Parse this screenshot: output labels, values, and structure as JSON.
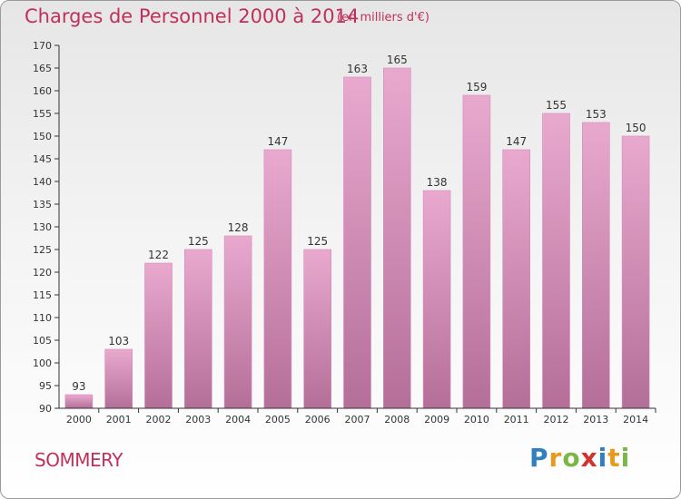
{
  "title": "Charges de Personnel 2000 à 2014",
  "unit_note": "(en milliers d'€)",
  "town": "SOMMERY",
  "logo": {
    "text": "Proxiti",
    "letters": [
      {
        "ch": "P",
        "color": "#2f7fc1"
      },
      {
        "ch": "r",
        "color": "#e89a1e"
      },
      {
        "ch": "o",
        "color": "#7ab648"
      },
      {
        "ch": "x",
        "color": "#d0342c"
      },
      {
        "ch": "i",
        "color": "#2f7fc1"
      },
      {
        "ch": "t",
        "color": "#e89a1e"
      },
      {
        "ch": "i",
        "color": "#7ab648"
      }
    ]
  },
  "colors": {
    "bar_top": "#e9a9cf",
    "bar_bottom": "#b46f98",
    "text_accent": "#c0305a",
    "axis": "#333333"
  },
  "chart_data": {
    "type": "bar",
    "title": "Charges de Personnel 2000 à 2014",
    "xlabel": "",
    "ylabel": "",
    "categories": [
      "2000",
      "2001",
      "2002",
      "2003",
      "2004",
      "2005",
      "2006",
      "2007",
      "2008",
      "2009",
      "2010",
      "2011",
      "2012",
      "2013",
      "2014"
    ],
    "values": [
      93,
      103,
      122,
      125,
      128,
      147,
      125,
      163,
      165,
      138,
      159,
      147,
      155,
      153,
      150
    ],
    "ylim": [
      90,
      170
    ],
    "yticks": [
      90,
      95,
      100,
      105,
      110,
      115,
      120,
      125,
      130,
      135,
      140,
      145,
      150,
      155,
      160,
      165,
      170
    ],
    "grid": false,
    "legend": "none"
  }
}
